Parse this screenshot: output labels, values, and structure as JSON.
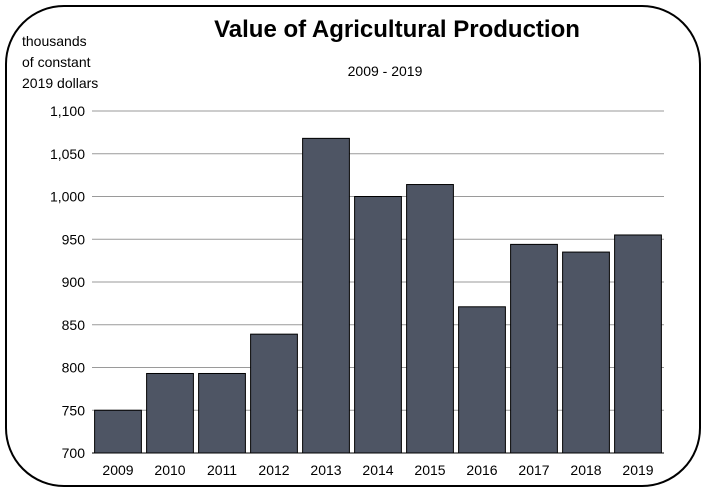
{
  "chart_data": {
    "type": "bar",
    "title": "Value of Agricultural Production",
    "subtitle": "2009 - 2019",
    "ylabel_lines": [
      "thousands",
      "of constant",
      "2019 dollars"
    ],
    "xlabel": "",
    "categories": [
      "2009",
      "2010",
      "2011",
      "2012",
      "2013",
      "2014",
      "2015",
      "2016",
      "2017",
      "2018",
      "2019"
    ],
    "values": [
      750,
      793,
      793,
      839,
      1068,
      1000,
      1014,
      871,
      944,
      935,
      955
    ],
    "ylim": [
      700,
      1100
    ],
    "yticks": [
      700,
      750,
      800,
      850,
      900,
      950,
      1000,
      1050,
      1100
    ],
    "ytick_labels": [
      "700",
      "750",
      "800",
      "850",
      "900",
      "950",
      "1,000",
      "1,050",
      "1,100"
    ],
    "grid": "horizontal",
    "bar_color": "#4e5564",
    "bar_edge_color": "#000000"
  }
}
